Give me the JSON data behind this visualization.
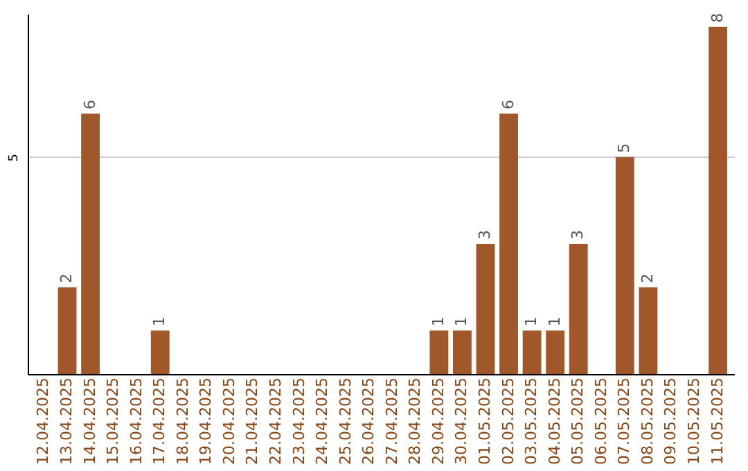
{
  "chart_data": {
    "type": "bar",
    "categories": [
      "12.04.2025",
      "13.04.2025",
      "14.04.2025",
      "15.04.2025",
      "16.04.2025",
      "17.04.2025",
      "18.04.2025",
      "19.04.2025",
      "20.04.2025",
      "21.04.2025",
      "22.04.2025",
      "23.04.2025",
      "24.04.2025",
      "25.04.2025",
      "26.04.2025",
      "27.04.2025",
      "28.04.2025",
      "29.04.2025",
      "30.04.2025",
      "01.05.2025",
      "02.05.2025",
      "03.05.2025",
      "04.05.2025",
      "05.05.2025",
      "06.05.2025",
      "07.05.2025",
      "08.05.2025",
      "09.05.2025",
      "10.05.2025",
      "11.05.2025"
    ],
    "values": [
      0,
      2,
      6,
      0,
      0,
      1,
      0,
      0,
      0,
      0,
      0,
      0,
      0,
      0,
      0,
      0,
      0,
      1,
      1,
      3,
      6,
      1,
      1,
      3,
      0,
      5,
      2,
      0,
      0,
      8
    ],
    "value_labels": [
      null,
      "2",
      "6",
      null,
      null,
      "1",
      null,
      null,
      null,
      null,
      null,
      null,
      null,
      null,
      null,
      null,
      null,
      "1",
      "1",
      "3",
      "6",
      "1",
      "1",
      "3",
      null,
      "5",
      "2",
      null,
      null,
      "8"
    ],
    "color": "#a0582a",
    "ylim": [
      0,
      8.3
    ],
    "yticks": [
      5
    ],
    "grid": "y"
  }
}
